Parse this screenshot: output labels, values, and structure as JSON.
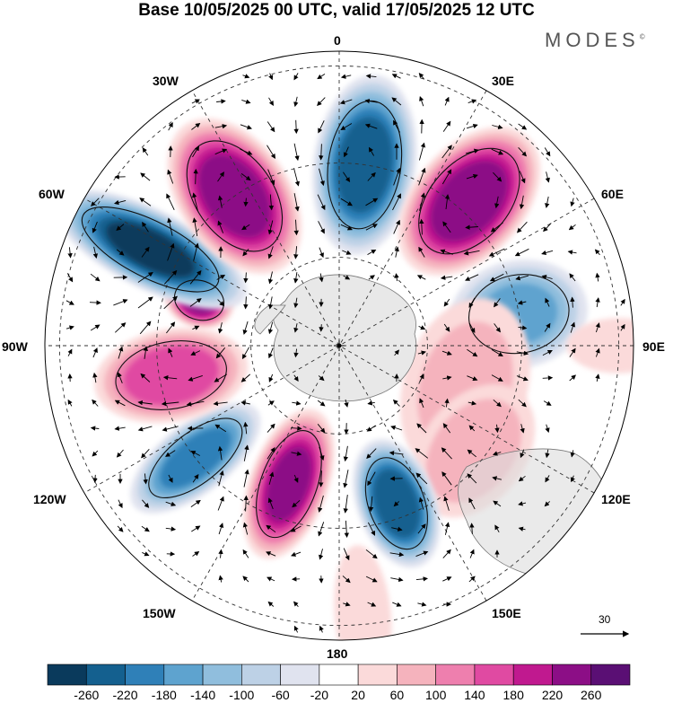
{
  "title": "Base 10/05/2025 00 UTC, valid 17/05/2025 12 UTC",
  "brand": "MODES",
  "brand_mark": "©",
  "longitude_labels": [
    "0",
    "30E",
    "60E",
    "90E",
    "120E",
    "150E",
    "180",
    "150W",
    "120W",
    "90W",
    "60W",
    "30W"
  ],
  "reference_vector_label": "30",
  "colorbar": {
    "ticks": [
      "-260",
      "-220",
      "-180",
      "-140",
      "-100",
      "-60",
      "-20",
      "20",
      "60",
      "100",
      "140",
      "180",
      "220",
      "260"
    ],
    "colors": [
      "#0a3a5c",
      "#14608f",
      "#2f80b8",
      "#5ea3cf",
      "#90bedd",
      "#bdd1e6",
      "#e0e3ef",
      "#ffffff",
      "#fbdada",
      "#f5b3bd",
      "#ee7fae",
      "#e04aa2",
      "#c0198f",
      "#8c0e86",
      "#5a0f74"
    ]
  },
  "anomaly_centers": [
    {
      "lon": 8,
      "r": 0.62,
      "value": -250,
      "rx": 0.13,
      "ry": 0.23
    },
    {
      "lon": 42,
      "r": 0.66,
      "value": 255,
      "rx": 0.14,
      "ry": 0.22
    },
    {
      "lon": 80,
      "r": 0.62,
      "value": -150,
      "rx": 0.14,
      "ry": 0.18
    },
    {
      "lon": 108,
      "r": 0.45,
      "value": 70,
      "rx": 0.25,
      "ry": 0.17
    },
    {
      "lon": 128,
      "r": 0.58,
      "value": 90,
      "rx": 0.2,
      "ry": 0.14
    },
    {
      "lon": 160,
      "r": 0.57,
      "value": -250,
      "rx": 0.1,
      "ry": 0.17
    },
    {
      "lon": 200,
      "r": 0.5,
      "value": 230,
      "rx": 0.1,
      "ry": 0.2
    },
    {
      "lon": 232,
      "r": 0.62,
      "value": -200,
      "rx": 0.09,
      "ry": 0.2
    },
    {
      "lon": 260,
      "r": 0.58,
      "value": 175,
      "rx": 0.12,
      "ry": 0.2
    },
    {
      "lon": 288,
      "r": 0.5,
      "value": 230,
      "rx": 0.07,
      "ry": 0.09
    },
    {
      "lon": 297,
      "r": 0.72,
      "value": -260,
      "rx": 0.1,
      "ry": 0.27
    },
    {
      "lon": 325,
      "r": 0.62,
      "value": 250,
      "rx": 0.14,
      "ry": 0.22
    },
    {
      "lon": 175,
      "r": 0.92,
      "value": 50,
      "rx": 0.08,
      "ry": 0.2
    },
    {
      "lon": 90,
      "r": 0.95,
      "value": 40,
      "rx": 0.08,
      "ry": 0.15
    }
  ]
}
